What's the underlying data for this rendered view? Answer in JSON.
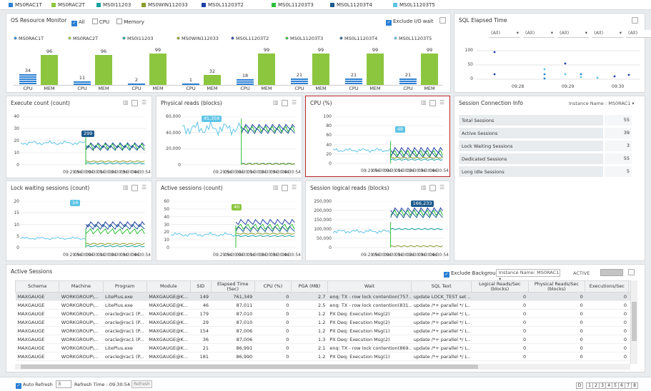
{
  "colors": {
    "accent": "#2a7fd4",
    "bar_cpu": "#2a7fd4",
    "bar_mem": "#8cc63f",
    "selected_border": "#c0282d"
  },
  "legend": [
    {
      "name": "MS0RAC1T",
      "color": "#2a7fd4"
    },
    {
      "name": "MS0RAC2T",
      "color": "#8cc63f"
    },
    {
      "name": "MS0I11203",
      "color": "#17a0a0"
    },
    {
      "name": "MS0WIN112033",
      "color": "#8a9a2a"
    },
    {
      "name": "MS0L11203T2",
      "color": "#1f3fa8"
    },
    {
      "name": "MS0L11203T3",
      "color": "#2dbf3a"
    },
    {
      "name": "MS0L11203T4",
      "color": "#1d5a8c"
    },
    {
      "name": "MS0L11203T5",
      "color": "#5fc4e6"
    }
  ],
  "os": {
    "title": "OS Resource Monitor",
    "opt_all": "All",
    "opt_cpu": "CPU",
    "opt_memory": "Memory",
    "exclude_io": "Exclude I/O wait",
    "cpu_label": "CPU",
    "mem_label": "MEM",
    "instances": [
      {
        "name": "MS0RAC1T",
        "cpu": 34,
        "mem": 96,
        "color": "#2a7fd4"
      },
      {
        "name": "MS0RAC2T",
        "cpu": 11,
        "mem": 96,
        "color": "#8cc63f"
      },
      {
        "name": "MS0I11203",
        "cpu": 2,
        "mem": 99,
        "color": "#17a0a0"
      },
      {
        "name": "MS0WIN112033",
        "cpu": 1,
        "mem": 32,
        "color": "#8a9a2a"
      },
      {
        "name": "MS0L11203T2",
        "cpu": 18,
        "mem": 99,
        "color": "#1f3fa8"
      },
      {
        "name": "MS0L11203T3",
        "cpu": 21,
        "mem": 99,
        "color": "#2dbf3a"
      },
      {
        "name": "MS0L11203T4",
        "cpu": 21,
        "mem": 99,
        "color": "#1d5a8c"
      },
      {
        "name": "MS0L11203T5",
        "cpu": 21,
        "mem": 99,
        "color": "#5fc4e6"
      }
    ]
  },
  "sql_elapsed": {
    "title": "SQL Elapsed Time",
    "filters": [
      "(All)",
      "(All)",
      "(All)",
      "(All)",
      "(All)"
    ],
    "yticks": [
      "100",
      "50",
      "0"
    ],
    "xticks": [
      "09:28",
      "09:29",
      "09:30"
    ]
  },
  "chart_data": [
    {
      "type": "line",
      "title": "Execute count (count)",
      "yticks": [
        "40",
        "30",
        "20",
        "10",
        "0"
      ],
      "ylim": [
        0,
        40
      ],
      "xticks": [
        "09:29:54",
        "09:30:04",
        "09:30:14",
        "09:30:24",
        "09:30:34",
        "09:30:44",
        "09:30:54"
      ],
      "tooltip": "299"
    },
    {
      "type": "line",
      "title": "Physical reads (blocks)",
      "yticks": [
        "60,000",
        "40,000",
        "20,000",
        "0"
      ],
      "ylim": [
        0,
        60000
      ],
      "xticks": [
        "09:29:54",
        "09:30:04",
        "09:30:14",
        "09:30:24",
        "09:30:34",
        "09:30:44",
        "09:30:54"
      ],
      "tooltip": "45,359"
    },
    {
      "type": "line",
      "title": "CPU (%)",
      "yticks": [
        "100",
        "80",
        "60",
        "40",
        "20",
        "0"
      ],
      "ylim": [
        0,
        100
      ],
      "xticks": [
        "09:29:54",
        "09:30:04",
        "09:30:14",
        "09:30:24",
        "09:30:34",
        "09:30:44",
        "09:30:54"
      ],
      "tooltip": "48"
    },
    {
      "type": "line",
      "title": "Lock waiting sessions (count)",
      "yticks": [
        "20",
        "15",
        "10",
        "5",
        "0"
      ],
      "ylim": [
        0,
        20
      ],
      "xticks": [
        "09:29:54",
        "09:30:04",
        "09:30:14",
        "09:30:24",
        "09:30:34",
        "09:30:44",
        "09:30:54"
      ],
      "tooltip": "14"
    },
    {
      "type": "line",
      "title": "Active sessions (count)",
      "yticks": [
        "60",
        "50",
        "40",
        "30",
        "20",
        "10",
        "0"
      ],
      "ylim": [
        0,
        60
      ],
      "xticks": [
        "09:29:54",
        "09:30:04",
        "09:30:14",
        "09:30:24",
        "09:30:34",
        "09:30:44",
        "09:30:54"
      ],
      "tooltip": "40"
    },
    {
      "type": "line",
      "title": "Session logical reads (blocks)",
      "yticks": [
        "250,000",
        "200,000",
        "150,000",
        "100,000",
        "50,000",
        "0"
      ],
      "ylim": [
        0,
        250000
      ],
      "xticks": [
        "09:29:54",
        "09:30:04",
        "09:30:14",
        "09:30:24",
        "09:30:34",
        "09:30:44",
        "09:30:54"
      ],
      "tooltip": "166,233"
    }
  ],
  "session_info": {
    "title": "Session Connection Info",
    "instance_label": "Instance Name : MS0RAC1",
    "rows": [
      {
        "label": "Total Sessions",
        "value": "55"
      },
      {
        "label": "Active Sessions",
        "value": "39"
      },
      {
        "label": "Lock Waiting Sessions",
        "value": "3"
      },
      {
        "label": "Dedicated Sessions",
        "value": "55"
      },
      {
        "label": "Long idle Sessions",
        "value": "5"
      }
    ]
  },
  "active_sessions": {
    "title": "Active Sessions",
    "exclude_bg": "Exclude Background",
    "instance_label": "Instance Name: MS0RAC1",
    "active_label": "ACTIVE",
    "columns": [
      "Schema",
      "Machine",
      "Program",
      "Module",
      "SID",
      "Elapsed Time (Sec)",
      "CPU (%)",
      "PGA (MB)",
      "Wait",
      "SQL Text",
      "Logical Reads/Sec (blocks)",
      "Physical Reads/Sec (blocks)",
      "Executions/Sec",
      "H"
    ],
    "rows": [
      [
        "MAXGAUGE",
        "WORKGROUP\\...",
        "LitePlus.exe",
        "MAXGAUGE@K...",
        "149",
        "761,349",
        "0",
        "2.7",
        "enq: TX - row lock contention(757...",
        "update LOCK_TEST set ...",
        "0",
        "0",
        "0"
      ],
      [
        "MAXGAUGE",
        "WORKGROUP\\...",
        "LitePlus.exe",
        "MAXGAUGE@K...",
        "46",
        "87,011",
        "0",
        "2.5",
        "enq: TX - row lock contention(831...",
        "update /*+ parallel */ L...",
        "0",
        "0",
        "0"
      ],
      [
        "MAXGAUGE",
        "WORKGROUP\\...",
        "oracle@rac1 (P...",
        "MAXGAUGE@K...",
        "179",
        "87,010",
        "0",
        "1.2",
        "PX Deq: Execution Msg(2)",
        "update /*+ parallel */ L...",
        "0",
        "0",
        "0"
      ],
      [
        "MAXGAUGE",
        "WORKGROUP\\...",
        "oracle@rac1 (P...",
        "MAXGAUGE@K...",
        "29",
        "87,010",
        "0",
        "1.2",
        "PX Deq: Execution Msg(2)",
        "update /*+ parallel */ L...",
        "0",
        "0",
        "0"
      ],
      [
        "MAXGAUGE",
        "WORKGROUP\\...",
        "oracle@rac1 (P...",
        "MAXGAUGE@K...",
        "154",
        "87,006",
        "0",
        "1.2",
        "PX Deq: Execution Msg(1)",
        "update /*+ parallel */ L...",
        "0",
        "0",
        "0"
      ],
      [
        "MAXGAUGE",
        "WORKGROUP\\...",
        "oracle@rac1 (P...",
        "MAXGAUGE@K...",
        "36",
        "87,006",
        "0",
        "1.3",
        "PX Deq: Execution Msg(2)",
        "update /*+ parallel */ L...",
        "0",
        "0",
        "0"
      ],
      [
        "MAXGAUGE",
        "WORKGROUP\\...",
        "LitePlus.exe",
        "MAXGAUGE@K...",
        "21",
        "86,991",
        "0",
        "2.1",
        "enq: TX - row lock contention(869...",
        "update /*+ parallel */ L...",
        "0",
        "0",
        "0"
      ],
      [
        "MAXGAUGE",
        "WORKGROUP\\...",
        "oracle@rac1 (P...",
        "MAXGAUGE@K...",
        "181",
        "86,990",
        "0",
        "1.2",
        "PX Deq: Execution Msg(1)",
        "update /*+ parallel */ L...",
        "0",
        "0",
        "0"
      ]
    ]
  },
  "footer": {
    "auto_refresh": "Auto Refresh",
    "refresh_value": "3",
    "refresh_time": "Refresh Time : 09:30:54",
    "refresh_btn": "Refresh",
    "pages": [
      "D",
      "1",
      "2",
      "3",
      "4",
      "5",
      "6",
      "7",
      "8"
    ]
  }
}
